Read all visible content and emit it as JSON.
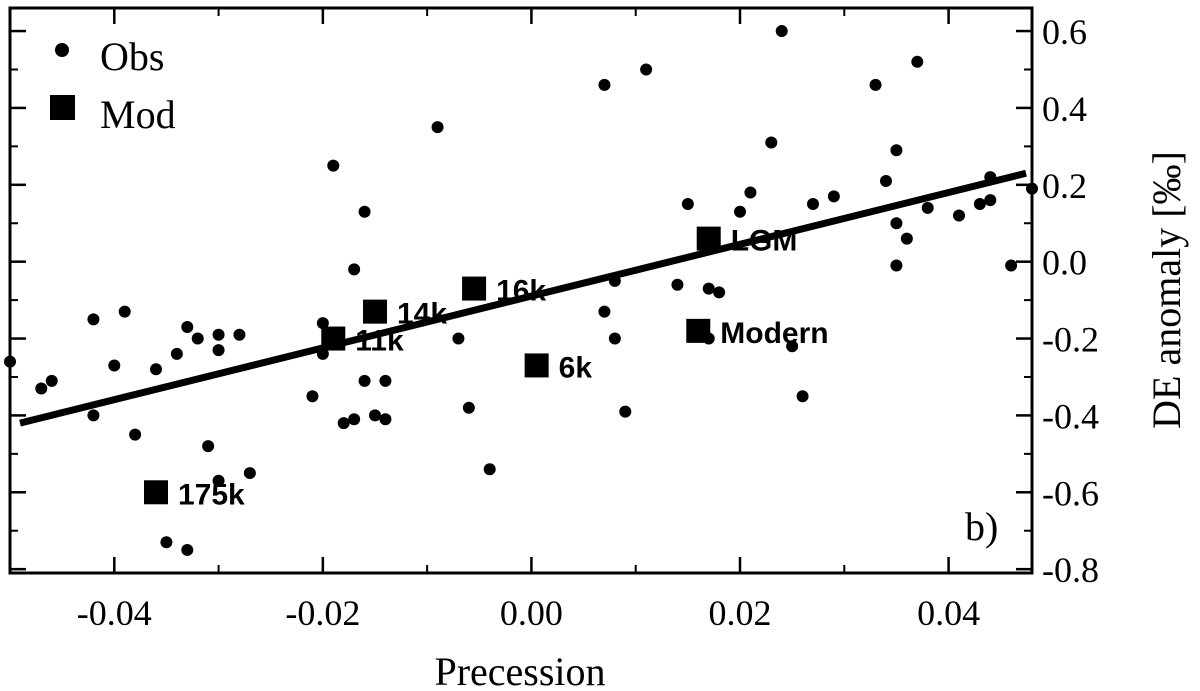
{
  "chart_data": {
    "type": "scatter",
    "panel_label": "b)",
    "xlabel": "Precession",
    "ylabel": "DE anomaly [‰]",
    "xlim": [
      -0.05,
      0.048
    ],
    "ylim": [
      -0.81,
      0.66
    ],
    "x_ticks": [
      -0.04,
      -0.02,
      0.0,
      0.02,
      0.04
    ],
    "x_tick_labels": [
      "-0.04",
      "-0.02",
      "0.00",
      "0.02",
      "0.04"
    ],
    "y_ticks": [
      -0.8,
      -0.6,
      -0.4,
      -0.2,
      0.0,
      0.2,
      0.4,
      0.6
    ],
    "y_tick_labels": [
      "-0.8",
      "-0.6",
      "-0.4",
      "-0.2",
      "0.0",
      "0.2",
      "0.4",
      "0.6"
    ],
    "legend": [
      {
        "name": "Obs",
        "marker": "circle"
      },
      {
        "name": "Mod",
        "marker": "square"
      }
    ],
    "regression_line": {
      "x": [
        -0.05,
        0.048
      ],
      "y": [
        -0.42,
        0.23
      ]
    },
    "series": [
      {
        "name": "Obs",
        "marker": "circle",
        "points": [
          [
            -0.05,
            -0.26
          ],
          [
            -0.047,
            -0.33
          ],
          [
            -0.046,
            -0.31
          ],
          [
            -0.042,
            -0.4
          ],
          [
            -0.042,
            -0.15
          ],
          [
            -0.04,
            -0.27
          ],
          [
            -0.039,
            -0.13
          ],
          [
            -0.038,
            -0.45
          ],
          [
            -0.036,
            -0.28
          ],
          [
            -0.035,
            -0.73
          ],
          [
            -0.034,
            -0.24
          ],
          [
            -0.033,
            -0.75
          ],
          [
            -0.033,
            -0.17
          ],
          [
            -0.032,
            -0.2
          ],
          [
            -0.031,
            -0.48
          ],
          [
            -0.03,
            -0.19
          ],
          [
            -0.03,
            -0.23
          ],
          [
            -0.03,
            -0.57
          ],
          [
            -0.028,
            -0.19
          ],
          [
            -0.027,
            -0.55
          ],
          [
            -0.021,
            -0.35
          ],
          [
            -0.02,
            -0.24
          ],
          [
            -0.02,
            -0.16
          ],
          [
            -0.019,
            0.25
          ],
          [
            -0.018,
            -0.42
          ],
          [
            -0.017,
            -0.41
          ],
          [
            -0.017,
            -0.02
          ],
          [
            -0.016,
            0.13
          ],
          [
            -0.016,
            -0.31
          ],
          [
            -0.015,
            -0.4
          ],
          [
            -0.014,
            -0.41
          ],
          [
            -0.014,
            -0.31
          ],
          [
            -0.009,
            0.35
          ],
          [
            -0.007,
            -0.2
          ],
          [
            -0.006,
            -0.38
          ],
          [
            -0.004,
            -0.54
          ],
          [
            0.007,
            0.46
          ],
          [
            0.007,
            -0.13
          ],
          [
            0.008,
            -0.2
          ],
          [
            0.008,
            -0.05
          ],
          [
            0.009,
            -0.39
          ],
          [
            0.011,
            0.5
          ],
          [
            0.014,
            -0.06
          ],
          [
            0.015,
            0.15
          ],
          [
            0.017,
            -0.07
          ],
          [
            0.017,
            -0.2
          ],
          [
            0.018,
            -0.08
          ],
          [
            0.02,
            0.13
          ],
          [
            0.021,
            0.18
          ],
          [
            0.023,
            0.31
          ],
          [
            0.024,
            0.6
          ],
          [
            0.025,
            -0.22
          ],
          [
            0.026,
            -0.35
          ],
          [
            0.027,
            0.15
          ],
          [
            0.029,
            0.17
          ],
          [
            0.033,
            0.46
          ],
          [
            0.034,
            0.21
          ],
          [
            0.035,
            0.29
          ],
          [
            0.035,
            0.1
          ],
          [
            0.035,
            -0.01
          ],
          [
            0.036,
            0.06
          ],
          [
            0.037,
            0.52
          ],
          [
            0.038,
            0.14
          ],
          [
            0.041,
            0.12
          ],
          [
            0.043,
            0.15
          ],
          [
            0.044,
            0.16
          ],
          [
            0.044,
            0.22
          ],
          [
            0.046,
            -0.01
          ],
          [
            0.048,
            0.19
          ]
        ]
      },
      {
        "name": "Mod",
        "marker": "square",
        "points": [
          {
            "label": "175k",
            "x": -0.036,
            "y": -0.6
          },
          {
            "label": "11k",
            "x": -0.019,
            "y": -0.2
          },
          {
            "label": "14k",
            "x": -0.015,
            "y": -0.13
          },
          {
            "label": "16k",
            "x": -0.0055,
            "y": -0.07
          },
          {
            "label": "6k",
            "x": 0.0005,
            "y": -0.27
          },
          {
            "label": "Modern",
            "x": 0.016,
            "y": -0.18
          },
          {
            "label": "LGM",
            "x": 0.017,
            "y": 0.06
          }
        ]
      }
    ]
  }
}
